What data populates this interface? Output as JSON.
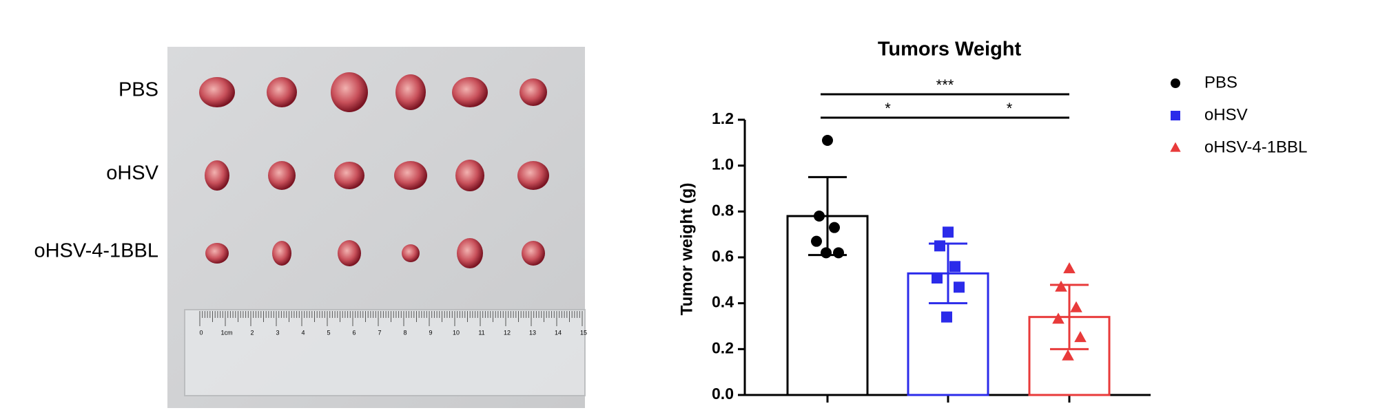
{
  "photo": {
    "row_labels": [
      "PBS",
      "oHSV",
      "oHSV-4-1BBL"
    ],
    "ruler_labels": [
      "0",
      "1cm",
      "2",
      "3",
      "4",
      "5",
      "6",
      "7",
      "8",
      "9",
      "10",
      "11",
      "12",
      "13",
      "14",
      "15"
    ]
  },
  "chart_data": {
    "type": "bar",
    "title": "Tumors Weight",
    "ylabel": "Tumor weight (g)",
    "ylim": [
      0,
      1.2
    ],
    "yticks": [
      {
        "value": 0,
        "label": "0.0"
      },
      {
        "value": 0.2,
        "label": "0.2"
      },
      {
        "value": 0.4,
        "label": "0.4"
      },
      {
        "value": 0.6,
        "label": "0.6"
      },
      {
        "value": 0.8,
        "label": "0.8"
      },
      {
        "value": 1.0,
        "label": "1.0"
      },
      {
        "value": 1.2,
        "label": "1.2"
      }
    ],
    "series": [
      {
        "name": "PBS",
        "color": "#000000",
        "marker": "circle",
        "value": 0.78,
        "error": 0.17,
        "points": [
          1.11,
          0.78,
          0.73,
          0.67,
          0.62,
          0.62
        ]
      },
      {
        "name": "oHSV",
        "color": "#2b2bea",
        "marker": "square",
        "value": 0.53,
        "error": 0.13,
        "points": [
          0.71,
          0.65,
          0.56,
          0.51,
          0.47,
          0.34
        ]
      },
      {
        "name": "oHSV-4-1BBL",
        "color": "#e83a3a",
        "marker": "triangle",
        "value": 0.34,
        "error": 0.14,
        "points": [
          0.55,
          0.47,
          0.38,
          0.33,
          0.25,
          0.17
        ]
      }
    ],
    "significance": [
      "*",
      "*",
      "***"
    ],
    "legend": "right"
  }
}
